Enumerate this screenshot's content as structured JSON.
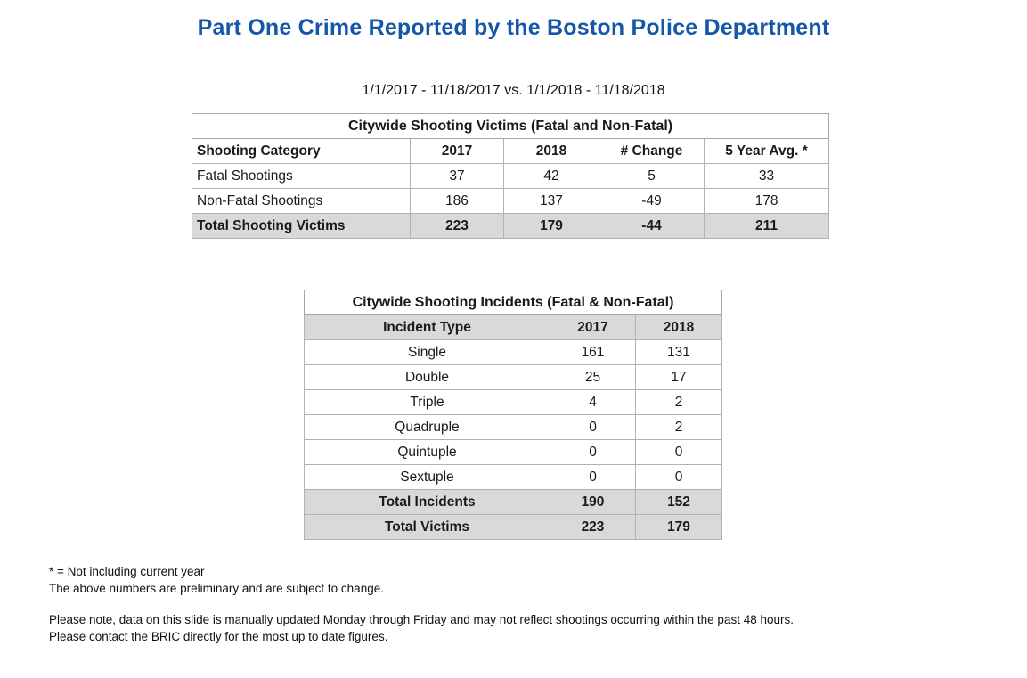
{
  "page": {
    "title": "Part One Crime Reported by the Boston Police Department",
    "subtitle": "1/1/2017 - 11/18/2017 vs. 1/1/2018 - 11/18/2018"
  },
  "colors": {
    "title_blue": "#1457a8",
    "shaded_row_gray": "#d9d9d9",
    "border_gray": "#b2b2b2",
    "background": "#ffffff"
  },
  "victims_table": {
    "caption": "Citywide Shooting Victims (Fatal and Non-Fatal)",
    "columns": [
      "Shooting Category",
      "2017",
      "2018",
      "# Change",
      "5 Year Avg. *"
    ],
    "rows": [
      {
        "label": "Fatal Shootings",
        "y2017": "37",
        "y2018": "42",
        "change": "5",
        "avg": "33"
      },
      {
        "label": "Non-Fatal Shootings",
        "y2017": "186",
        "y2018": "137",
        "change": "-49",
        "avg": "178"
      }
    ],
    "total_row": {
      "label": "Total Shooting Victims",
      "y2017": "223",
      "y2018": "179",
      "change": "-44",
      "avg": "211"
    }
  },
  "incidents_table": {
    "caption": "Citywide Shooting Incidents (Fatal & Non-Fatal)",
    "columns": [
      "Incident Type",
      "2017",
      "2018"
    ],
    "rows": [
      {
        "label": "Single",
        "y2017": "161",
        "y2018": "131"
      },
      {
        "label": "Double",
        "y2017": "25",
        "y2018": "17"
      },
      {
        "label": "Triple",
        "y2017": "4",
        "y2018": "2"
      },
      {
        "label": "Quadruple",
        "y2017": "0",
        "y2018": "2"
      },
      {
        "label": "Quintuple",
        "y2017": "0",
        "y2018": "0"
      },
      {
        "label": "Sextuple",
        "y2017": "0",
        "y2018": "0"
      }
    ],
    "total_rows": [
      {
        "label": "Total Incidents",
        "y2017": "190",
        "y2018": "152"
      },
      {
        "label": "Total Victims",
        "y2017": "223",
        "y2018": "179"
      }
    ]
  },
  "footnotes": {
    "line1": "* = Not including current year",
    "line2": "The above numbers are preliminary and are subject to change.",
    "line3": "Please note, data on this slide is manually updated Monday through Friday and may not reflect shootings occurring within the past 48 hours.",
    "line4": "Please contact the BRIC directly for the most up to date figures."
  }
}
